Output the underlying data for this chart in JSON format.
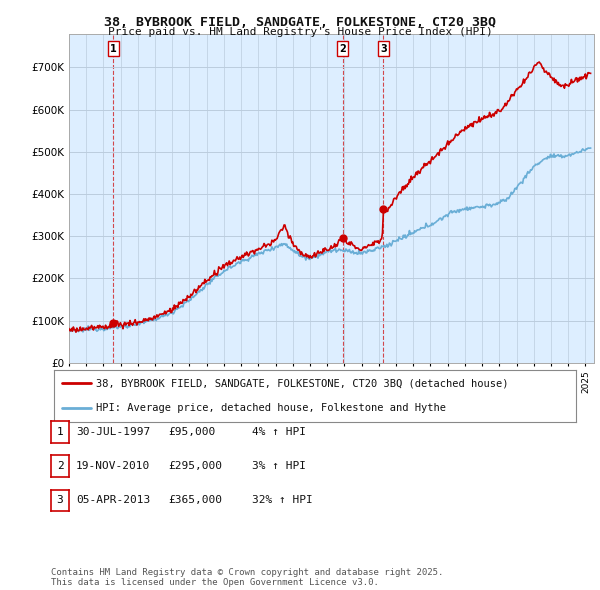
{
  "title_line1": "38, BYBROOK FIELD, SANDGATE, FOLKESTONE, CT20 3BQ",
  "title_line2": "Price paid vs. HM Land Registry's House Price Index (HPI)",
  "ytick_labels": [
    "£0",
    "£100K",
    "£200K",
    "£300K",
    "£400K",
    "£500K",
    "£600K",
    "£700K"
  ],
  "yticks": [
    0,
    100000,
    200000,
    300000,
    400000,
    500000,
    600000,
    700000
  ],
  "ylim": [
    0,
    780000
  ],
  "xlim_start": 1995.0,
  "xlim_end": 2025.5,
  "hpi_color": "#6aaed6",
  "price_color": "#cc0000",
  "plot_bg_color": "#ddeeff",
  "grid_color": "#bbccdd",
  "sale_dates": [
    1997.58,
    2010.89,
    2013.27
  ],
  "sale_prices": [
    95000,
    295000,
    365000
  ],
  "sale_labels": [
    "1",
    "2",
    "3"
  ],
  "legend_line1": "38, BYBROOK FIELD, SANDGATE, FOLKESTONE, CT20 3BQ (detached house)",
  "legend_line2": "HPI: Average price, detached house, Folkestone and Hythe",
  "table_data": [
    [
      "1",
      "30-JUL-1997",
      "£95,000",
      "4% ↑ HPI"
    ],
    [
      "2",
      "19-NOV-2010",
      "£295,000",
      "3% ↑ HPI"
    ],
    [
      "3",
      "05-APR-2013",
      "£365,000",
      "32% ↑ HPI"
    ]
  ],
  "footer": "Contains HM Land Registry data © Crown copyright and database right 2025.\nThis data is licensed under the Open Government Licence v3.0.",
  "background_color": "#ffffff"
}
